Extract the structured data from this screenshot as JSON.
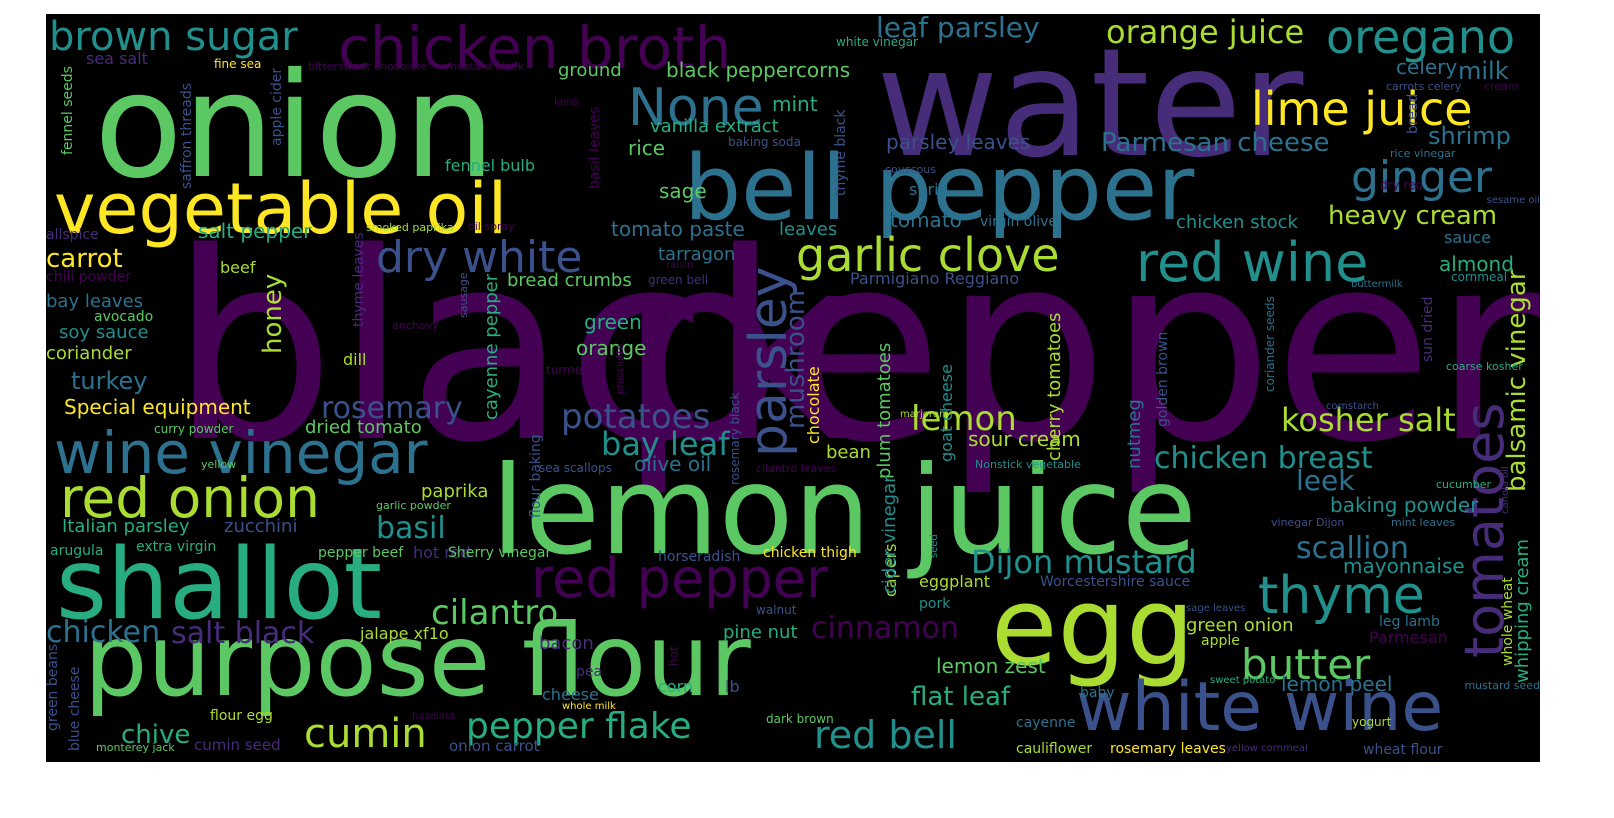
{
  "wordcloud": {
    "background": "#000000",
    "palette": [
      "#440154",
      "#472c7a",
      "#3b518b",
      "#2c718e",
      "#21908d",
      "#27ad81",
      "#5cc863",
      "#aadc32",
      "#fde725"
    ],
    "words": [
      {
        "text": "black",
        "color": "#440154"
      },
      {
        "text": "pepper",
        "color": "#440154"
      },
      {
        "text": "water",
        "color": "#472c7a"
      },
      {
        "text": "onion",
        "color": "#5cc863"
      },
      {
        "text": "lemon juice",
        "color": "#5cc863"
      },
      {
        "text": "bell pepper",
        "color": "#2c718e"
      },
      {
        "text": "egg",
        "color": "#aadc32"
      },
      {
        "text": "purpose flour",
        "color": "#5cc863"
      },
      {
        "text": "shallot",
        "color": "#27ad81"
      },
      {
        "text": "vegetable oil",
        "color": "#fde725"
      },
      {
        "text": "chicken broth",
        "color": "#440154"
      },
      {
        "text": "white wine",
        "color": "#3b518b"
      },
      {
        "text": "wine vinegar",
        "color": "#2c718e"
      },
      {
        "text": "red onion",
        "color": "#aadc32"
      },
      {
        "text": "red pepper",
        "color": "#440154"
      },
      {
        "text": "garlic clove",
        "color": "#aadc32"
      },
      {
        "text": "red wine",
        "color": "#21908d"
      },
      {
        "text": "dry white",
        "color": "#3b518b"
      },
      {
        "text": "parsley",
        "color": "#3b518b"
      },
      {
        "text": "tomatoes",
        "color": "#472c7a"
      },
      {
        "text": "thyme",
        "color": "#21908d"
      },
      {
        "text": "butter",
        "color": "#5cc863"
      },
      {
        "text": "oregano",
        "color": "#21908d"
      },
      {
        "text": "lime juice",
        "color": "#fde725"
      },
      {
        "text": "brown sugar",
        "color": "#21908d"
      },
      {
        "text": "None",
        "color": "#2c718e"
      },
      {
        "text": "ginger",
        "color": "#2c718e"
      },
      {
        "text": "orange juice",
        "color": "#aadc32"
      },
      {
        "text": "leaf parsley",
        "color": "#2c718e"
      },
      {
        "text": "kosher salt",
        "color": "#aadc32"
      },
      {
        "text": "Dijon mustard",
        "color": "#21908d"
      },
      {
        "text": "cumin",
        "color": "#aadc32"
      },
      {
        "text": "pepper flake",
        "color": "#27ad81"
      },
      {
        "text": "red bell",
        "color": "#21908d"
      },
      {
        "text": "rosemary",
        "color": "#3b518b"
      },
      {
        "text": "potatoes",
        "color": "#3b518b"
      },
      {
        "text": "lemon",
        "color": "#aadc32"
      },
      {
        "text": "chicken breast",
        "color": "#21908d"
      },
      {
        "text": "scallion",
        "color": "#2c718e"
      },
      {
        "text": "cilantro",
        "color": "#5cc863"
      },
      {
        "text": "cinnamon",
        "color": "#440154"
      },
      {
        "text": "salt black",
        "color": "#472c7a"
      },
      {
        "text": "chicken",
        "color": "#2c718e"
      },
      {
        "text": "basil",
        "color": "#21908d"
      },
      {
        "text": "bay leaf",
        "color": "#21908d"
      },
      {
        "text": "heavy cream",
        "color": "#aadc32"
      },
      {
        "text": "Parmesan cheese",
        "color": "#2c718e"
      },
      {
        "text": "balsamic vinegar",
        "color": "#aadc32"
      },
      {
        "text": "mushroom",
        "color": "#3b518b"
      },
      {
        "text": "honey",
        "color": "#aadc32"
      },
      {
        "text": "carrot",
        "color": "#fde725"
      },
      {
        "text": "turkey",
        "color": "#2c718e"
      },
      {
        "text": "chive",
        "color": "#27ad81"
      },
      {
        "text": "flat leaf",
        "color": "#27ad81"
      },
      {
        "text": "leek",
        "color": "#2c718e"
      },
      {
        "text": "shrimp",
        "color": "#2c718e"
      },
      {
        "text": "milk",
        "color": "#2c718e"
      },
      {
        "text": "celery",
        "color": "#2c718e"
      },
      {
        "text": "mint",
        "color": "#27ad81"
      },
      {
        "text": "black peppercorns",
        "color": "#5cc863"
      },
      {
        "text": "ground",
        "color": "#5cc863"
      },
      {
        "text": "vanilla extract",
        "color": "#27ad81"
      },
      {
        "text": "rice",
        "color": "#5cc863"
      },
      {
        "text": "sage",
        "color": "#5cc863"
      },
      {
        "text": "parsley leaves",
        "color": "#3b518b"
      },
      {
        "text": "tomato paste",
        "color": "#2c718e"
      },
      {
        "text": "tomato",
        "color": "#2c718e"
      },
      {
        "text": "chicken stock",
        "color": "#21908d"
      },
      {
        "text": "salt pepper",
        "color": "#27ad81"
      },
      {
        "text": "Special equipment",
        "color": "#fde725"
      },
      {
        "text": "paprika",
        "color": "#aadc32"
      },
      {
        "text": "Italian parsley",
        "color": "#27ad81"
      },
      {
        "text": "zucchini",
        "color": "#3b518b"
      },
      {
        "text": "lemon zest",
        "color": "#5cc863"
      },
      {
        "text": "green onion",
        "color": "#aadc32"
      },
      {
        "text": "baking powder",
        "color": "#21908d"
      },
      {
        "text": "mayonnaise",
        "color": "#21908d"
      },
      {
        "text": "whipping cream",
        "color": "#27ad81"
      },
      {
        "text": "lemon peel",
        "color": "#2c718e"
      },
      {
        "text": "sour cream",
        "color": "#aadc32"
      },
      {
        "text": "olive oil",
        "color": "#2c718e"
      },
      {
        "text": "green",
        "color": "#27ad81"
      },
      {
        "text": "orange",
        "color": "#5cc863"
      },
      {
        "text": "dried tomato",
        "color": "#5cc863"
      },
      {
        "text": "coriander",
        "color": "#aadc32"
      },
      {
        "text": "soy sauce",
        "color": "#21908d"
      },
      {
        "text": "bay leaves",
        "color": "#2c718e"
      },
      {
        "text": "cayenne pepper",
        "color": "#27ad81"
      },
      {
        "text": "plum tomatoes",
        "color": "#5cc863"
      },
      {
        "text": "cherry tomatoes",
        "color": "#aadc32"
      },
      {
        "text": "nutmeg",
        "color": "#2c718e"
      },
      {
        "text": "bread crumbs",
        "color": "#5cc863"
      },
      {
        "text": "tarragon",
        "color": "#2c718e"
      },
      {
        "text": "leaves",
        "color": "#21908d"
      },
      {
        "text": "sauce",
        "color": "#2c718e"
      },
      {
        "text": "almond",
        "color": "#27ad81"
      },
      {
        "text": "beef",
        "color": "#aadc32"
      },
      {
        "text": "bean",
        "color": "#aadc32"
      },
      {
        "text": "dill",
        "color": "#aadc32"
      },
      {
        "text": "fennel bulb",
        "color": "#27ad81"
      },
      {
        "text": "Parmigiano Reggiano",
        "color": "#3b518b"
      },
      {
        "text": "jalape xf1o",
        "color": "#aadc32"
      },
      {
        "text": "pine nut",
        "color": "#27ad81"
      },
      {
        "text": "hot red",
        "color": "#472c7a"
      },
      {
        "text": "bacon",
        "color": "#472c7a"
      },
      {
        "text": "eggplant",
        "color": "#aadc32"
      },
      {
        "text": "capers",
        "color": "#aadc32"
      },
      {
        "text": "chicken thigh",
        "color": "#fde725"
      },
      {
        "text": "cider vinegar",
        "color": "#21908d"
      },
      {
        "text": "chocolate",
        "color": "#fde725"
      },
      {
        "text": "goat cheese",
        "color": "#21908d"
      },
      {
        "text": "Worcestershire sauce",
        "color": "#3b518b"
      },
      {
        "text": "Sherry vinegar",
        "color": "#5cc863"
      },
      {
        "text": "cumin seed",
        "color": "#472c7a"
      },
      {
        "text": "onion carrot",
        "color": "#3b518b"
      },
      {
        "text": "extra virgin",
        "color": "#27ad81"
      },
      {
        "text": "arugula",
        "color": "#27ad81"
      },
      {
        "text": "pepper beef",
        "color": "#5cc863"
      },
      {
        "text": "cheese",
        "color": "#2c718e"
      },
      {
        "text": "corn",
        "color": "#27ad81"
      },
      {
        "text": "lb",
        "color": "#3b518b"
      },
      {
        "text": "pea",
        "color": "#472c7a"
      },
      {
        "text": "flour egg",
        "color": "#aadc32"
      },
      {
        "text": "cauliflower",
        "color": "#aadc32"
      },
      {
        "text": "rosemary leaves",
        "color": "#fde725"
      },
      {
        "text": "wheat flour",
        "color": "#3b518b"
      },
      {
        "text": "Parmesan",
        "color": "#440154"
      },
      {
        "text": "leg lamb",
        "color": "#2c718e"
      },
      {
        "text": "apple",
        "color": "#aadc32"
      },
      {
        "text": "baby",
        "color": "#2c718e"
      },
      {
        "text": "cayenne",
        "color": "#2c718e"
      },
      {
        "text": "pork",
        "color": "#21908d"
      },
      {
        "text": "horseradish",
        "color": "#3b518b"
      },
      {
        "text": "walnut",
        "color": "#3b518b"
      },
      {
        "text": "whole wheat",
        "color": "#aadc32"
      },
      {
        "text": "dark brown",
        "color": "#5cc863"
      },
      {
        "text": "avocado",
        "color": "#5cc863"
      },
      {
        "text": "allspice",
        "color": "#472c7a"
      },
      {
        "text": "chili powder",
        "color": "#440154"
      },
      {
        "text": "curry powder",
        "color": "#5cc863"
      },
      {
        "text": "yellow",
        "color": "#5cc863"
      },
      {
        "text": "garlic powder",
        "color": "#5cc863"
      },
      {
        "text": "anchovy",
        "color": "#440154"
      },
      {
        "text": "sausage",
        "color": "#3b518b"
      },
      {
        "text": "thyme leaves",
        "color": "#472c7a"
      },
      {
        "text": "smoked paprika",
        "color": "#aadc32"
      },
      {
        "text": "oil spray",
        "color": "#440154"
      },
      {
        "text": "sea salt",
        "color": "#472c7a"
      },
      {
        "text": "fine sea",
        "color": "#fde725"
      },
      {
        "text": "apple cider",
        "color": "#3b518b"
      },
      {
        "text": "saffron threads",
        "color": "#3b518b"
      },
      {
        "text": "fennel seeds",
        "color": "#5cc863"
      },
      {
        "text": "bittersweet chocolate",
        "color": "#440154"
      },
      {
        "text": "mustard black",
        "color": "#440154"
      },
      {
        "text": "white vinegar",
        "color": "#27ad81"
      },
      {
        "text": "lamb",
        "color": "#440154"
      },
      {
        "text": "basil leaves",
        "color": "#440154"
      },
      {
        "text": "baking soda",
        "color": "#3b518b"
      },
      {
        "text": "thyme black",
        "color": "#3b518b"
      },
      {
        "text": "couscous",
        "color": "#3b518b"
      },
      {
        "text": "sprig",
        "color": "#2c718e"
      },
      {
        "text": "virgin olive",
        "color": "#2c718e"
      },
      {
        "text": "raisin",
        "color": "#440154"
      },
      {
        "text": "green bell",
        "color": "#472c7a"
      },
      {
        "text": "prosciutto",
        "color": "#440154"
      },
      {
        "text": "turmeric",
        "color": "#440154"
      },
      {
        "text": "rosemary black",
        "color": "#3b518b"
      },
      {
        "text": "flour baking",
        "color": "#3b518b"
      },
      {
        "text": "sea scallops",
        "color": "#3b518b"
      },
      {
        "text": "cilantro leaves",
        "color": "#440154"
      },
      {
        "text": "marjoram",
        "color": "#aadc32"
      },
      {
        "text": "golden brown",
        "color": "#3b518b"
      },
      {
        "text": "Nonstick vegetable",
        "color": "#21908d"
      },
      {
        "text": "coriander seeds",
        "color": "#2c718e"
      },
      {
        "text": "sun dried",
        "color": "#472c7a"
      },
      {
        "text": "dry red",
        "color": "#440154"
      },
      {
        "text": "bread",
        "color": "#3b518b"
      },
      {
        "text": "carrots celery",
        "color": "#3b518b"
      },
      {
        "text": "cream",
        "color": "#440154"
      },
      {
        "text": "rice vinegar",
        "color": "#2c718e"
      },
      {
        "text": "sesame oil",
        "color": "#3b518b"
      },
      {
        "text": "buttermilk",
        "color": "#2c718e"
      },
      {
        "text": "cornmeal",
        "color": "#21908d"
      },
      {
        "text": "coarse kosher",
        "color": "#27ad81"
      },
      {
        "text": "cornstarch",
        "color": "#3b518b"
      },
      {
        "text": "canola oil",
        "color": "#472c7a"
      },
      {
        "text": "cucumber",
        "color": "#27ad81"
      },
      {
        "text": "vinegar Dijon",
        "color": "#3b518b"
      },
      {
        "text": "mint leaves",
        "color": "#2c718e"
      },
      {
        "text": "seed",
        "color": "#21908d"
      },
      {
        "text": "sage leaves",
        "color": "#3b518b"
      },
      {
        "text": "mustard seed",
        "color": "#2c718e"
      },
      {
        "text": "sweet potato",
        "color": "#27ad81"
      },
      {
        "text": "yogurt",
        "color": "#aadc32"
      },
      {
        "text": "yellow cornmeal",
        "color": "#472c7a"
      },
      {
        "text": "hot",
        "color": "#440154"
      },
      {
        "text": "whole milk",
        "color": "#fde725"
      },
      {
        "text": "hazelnut",
        "color": "#440154"
      },
      {
        "text": "monterey jack",
        "color": "#5cc863"
      },
      {
        "text": "blue cheese",
        "color": "#3b518b"
      },
      {
        "text": "green beans",
        "color": "#3b518b"
      }
    ]
  }
}
